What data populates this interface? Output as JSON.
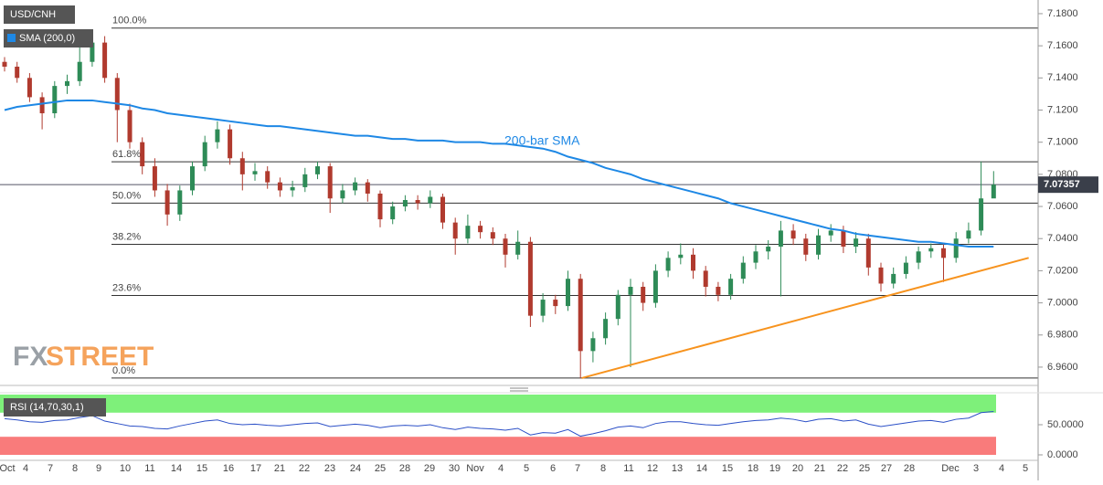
{
  "chart_data": [
    {
      "type": "candlestick",
      "title": "USD/CNH",
      "indicator": "SMA (200,0)",
      "annotation": "200-bar SMA",
      "x_labels": [
        "Oct",
        "4",
        "7",
        "8",
        "9",
        "10",
        "11",
        "14",
        "15",
        "16",
        "17",
        "21",
        "22",
        "23",
        "24",
        "25",
        "28",
        "29",
        "30",
        "Nov",
        "4",
        "5",
        "6",
        "7",
        "8",
        "11",
        "12",
        "13",
        "14",
        "15",
        "18",
        "19",
        "20",
        "21",
        "22",
        "25",
        "27",
        "28",
        "Dec",
        "3",
        "4",
        "5"
      ],
      "open": [
        7.15,
        7.147,
        7.14,
        7.128,
        7.118,
        7.135,
        7.138,
        7.15,
        7.162,
        7.14,
        7.12,
        7.1,
        7.085,
        7.07,
        7.055,
        7.07,
        7.085,
        7.1,
        7.108,
        7.09,
        7.08,
        7.082,
        7.075,
        7.07,
        7.072,
        7.08,
        7.085,
        7.065,
        7.07,
        7.075,
        7.068,
        7.052,
        7.06,
        7.064,
        7.062,
        7.066,
        7.05,
        7.04,
        7.048,
        7.044,
        7.04,
        7.03,
        7.038,
        6.992,
        7.002,
        6.998,
        7.015,
        6.97,
        6.978,
        6.99,
        7.005,
        7.01,
        7.0,
        7.02,
        7.028,
        7.03,
        7.02,
        7.01,
        7.005,
        7.015,
        7.025,
        7.032,
        7.035,
        7.045,
        7.04,
        7.03,
        7.042,
        7.045,
        7.035,
        7.04,
        7.022,
        7.012,
        7.018,
        7.025,
        7.032,
        7.034,
        7.028,
        7.04,
        7.045,
        7.065
      ],
      "high": [
        7.153,
        7.15,
        7.143,
        7.131,
        7.138,
        7.142,
        7.16,
        7.168,
        7.166,
        7.143,
        7.124,
        7.103,
        7.09,
        7.074,
        7.073,
        7.088,
        7.104,
        7.113,
        7.111,
        7.094,
        7.087,
        7.085,
        7.078,
        7.076,
        7.084,
        7.088,
        7.087,
        7.074,
        7.078,
        7.077,
        7.07,
        7.063,
        7.067,
        7.067,
        7.07,
        7.068,
        7.053,
        7.055,
        7.051,
        7.047,
        7.043,
        7.045,
        7.041,
        7.006,
        7.005,
        7.02,
        7.018,
        6.982,
        6.994,
        7.008,
        7.015,
        7.013,
        7.024,
        7.032,
        7.037,
        7.034,
        7.023,
        7.013,
        7.018,
        7.029,
        7.036,
        7.039,
        7.051,
        7.049,
        7.043,
        7.046,
        7.049,
        7.048,
        7.044,
        7.043,
        7.025,
        7.022,
        7.029,
        7.035,
        7.037,
        7.037,
        7.044,
        7.05,
        7.088,
        7.082
      ],
      "low": [
        7.144,
        7.137,
        7.125,
        7.108,
        7.115,
        7.13,
        7.135,
        7.147,
        7.137,
        7.1,
        7.096,
        7.08,
        7.066,
        7.048,
        7.051,
        7.067,
        7.082,
        7.096,
        7.086,
        7.07,
        7.076,
        7.071,
        7.066,
        7.066,
        7.069,
        7.077,
        7.056,
        7.062,
        7.067,
        7.063,
        7.047,
        7.049,
        7.057,
        7.058,
        7.059,
        7.046,
        7.03,
        7.037,
        7.04,
        7.036,
        7.022,
        7.027,
        6.985,
        6.988,
        6.993,
        6.995,
        6.953,
        6.963,
        6.974,
        6.986,
        6.96,
        6.995,
        6.997,
        7.016,
        7.024,
        7.015,
        7.004,
        7.001,
        7.002,
        7.012,
        7.021,
        7.027,
        7.004,
        7.036,
        7.026,
        7.027,
        7.038,
        7.031,
        7.031,
        7.017,
        7.007,
        7.009,
        7.015,
        7.021,
        7.028,
        7.013,
        7.025,
        7.037,
        7.042,
        7.066
      ],
      "close": [
        7.147,
        7.14,
        7.128,
        7.118,
        7.135,
        7.138,
        7.15,
        7.162,
        7.14,
        7.12,
        7.1,
        7.085,
        7.07,
        7.055,
        7.07,
        7.085,
        7.1,
        7.108,
        7.09,
        7.08,
        7.082,
        7.075,
        7.07,
        7.072,
        7.08,
        7.085,
        7.065,
        7.07,
        7.075,
        7.068,
        7.052,
        7.06,
        7.064,
        7.062,
        7.066,
        7.05,
        7.04,
        7.048,
        7.044,
        7.04,
        7.03,
        7.038,
        6.992,
        7.002,
        6.998,
        7.015,
        6.97,
        6.978,
        6.99,
        7.005,
        7.01,
        7.0,
        7.02,
        7.028,
        7.03,
        7.02,
        7.01,
        7.005,
        7.015,
        7.025,
        7.032,
        7.035,
        7.045,
        7.04,
        7.03,
        7.042,
        7.045,
        7.035,
        7.04,
        7.022,
        7.012,
        7.018,
        7.025,
        7.032,
        7.034,
        7.028,
        7.04,
        7.045,
        7.065,
        7.07357
      ],
      "up_color": "#2e8b57",
      "down_color": "#b03a2e",
      "sma": {
        "color": "#1e88e5",
        "values": [
          7.12,
          7.122,
          7.123,
          7.124,
          7.125,
          7.126,
          7.126,
          7.126,
          7.125,
          7.124,
          7.123,
          7.121,
          7.12,
          7.118,
          7.117,
          7.116,
          7.115,
          7.114,
          7.113,
          7.112,
          7.111,
          7.11,
          7.11,
          7.109,
          7.108,
          7.107,
          7.106,
          7.105,
          7.104,
          7.104,
          7.103,
          7.102,
          7.102,
          7.101,
          7.101,
          7.101,
          7.1,
          7.1,
          7.1,
          7.099,
          7.099,
          7.098,
          7.097,
          7.096,
          7.094,
          7.091,
          7.089,
          7.087,
          7.084,
          7.082,
          7.08,
          7.077,
          7.075,
          7.073,
          7.071,
          7.069,
          7.067,
          7.065,
          7.062,
          7.06,
          7.058,
          7.056,
          7.054,
          7.052,
          7.05,
          7.048,
          7.046,
          7.045,
          7.043,
          7.042,
          7.041,
          7.04,
          7.039,
          7.038,
          7.038,
          7.037,
          7.036,
          7.035,
          7.035,
          7.035
        ]
      },
      "fib_levels": [
        {
          "value": 7.171,
          "label": "100.0%"
        },
        {
          "value": 7.0878,
          "label": "61.8%"
        },
        {
          "value": 7.0621,
          "label": "50.0%"
        },
        {
          "value": 7.0364,
          "label": "38.2%"
        },
        {
          "value": 7.0046,
          "label": "23.6%"
        },
        {
          "value": 6.9532,
          "label": "0.0%"
        }
      ],
      "trendline": {
        "color": "#f7931e",
        "x": [
          46.1,
          81.8
        ],
        "y": [
          6.9532,
          7.028
        ]
      },
      "current_price": {
        "value": 7.07357,
        "label": "7.07357"
      },
      "ylim": [
        6.9486,
        7.1885
      ],
      "yticks": [
        {
          "value": 7.18,
          "label": "7.1800"
        },
        {
          "value": 7.16,
          "label": "7.1600"
        },
        {
          "value": 7.14,
          "label": "7.1400"
        },
        {
          "value": 7.12,
          "label": "7.1200"
        },
        {
          "value": 7.1,
          "label": "7.1000"
        },
        {
          "value": 7.08,
          "label": "7.0800"
        },
        {
          "value": 7.06,
          "label": "7.0600"
        },
        {
          "value": 7.04,
          "label": "7.0400"
        },
        {
          "value": 7.02,
          "label": "7.0200"
        },
        {
          "value": 7.0,
          "label": "7.0000"
        },
        {
          "value": 6.98,
          "label": "6.9800"
        },
        {
          "value": 6.96,
          "label": "6.9600"
        }
      ]
    },
    {
      "type": "line",
      "title": "RSI (14,70,30,1)",
      "color": "#2b4fc7",
      "values": [
        60,
        58,
        55,
        54,
        57,
        58,
        62,
        65,
        56,
        52,
        48,
        47,
        44,
        43,
        48,
        52,
        56,
        58,
        52,
        50,
        51,
        49,
        48,
        50,
        52,
        53,
        47,
        49,
        51,
        49,
        45,
        48,
        49,
        48,
        50,
        45,
        42,
        46,
        44,
        43,
        41,
        44,
        33,
        37,
        36,
        42,
        31,
        35,
        40,
        46,
        48,
        45,
        52,
        55,
        55,
        52,
        50,
        49,
        52,
        55,
        57,
        58,
        61,
        59,
        55,
        59,
        60,
        56,
        58,
        51,
        47,
        50,
        53,
        56,
        57,
        54,
        59,
        61,
        70,
        72
      ],
      "overbought": 70,
      "oversold": 30,
      "ylim": [
        0,
        100
      ],
      "yticks": [
        {
          "value": 50,
          "label": "50.0000"
        },
        {
          "value": 0,
          "label": "0.0000"
        }
      ]
    }
  ],
  "watermark": {
    "fx": "FX",
    "street": "STREET"
  }
}
